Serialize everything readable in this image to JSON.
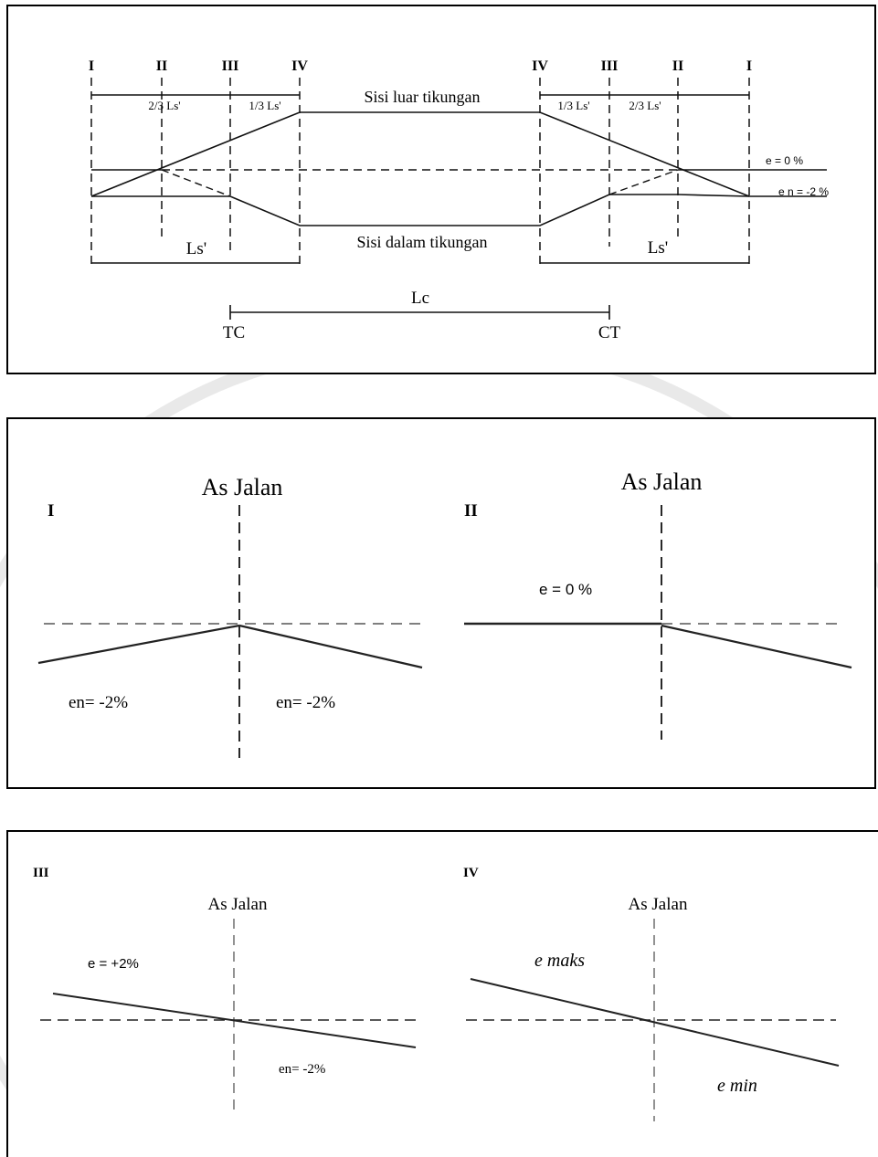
{
  "transition_diagram": {
    "stations_left": [
      "I",
      "II",
      "III",
      "IV"
    ],
    "stations_right": [
      "IV",
      "III",
      "II",
      "I"
    ],
    "segments_left": [
      "2/3 Ls'",
      "1/3 Ls'"
    ],
    "segments_right": [
      "1/3 Ls'",
      "2/3 Ls'"
    ],
    "outer_edge_label": "Sisi luar tikungan",
    "inner_edge_label": "Sisi dalam tikungan",
    "e_zero_label": "e = 0 %",
    "en_label": "e n = -2 %",
    "ls_left_label": "Ls'",
    "ls_right_label": "Ls'",
    "lc_label": "Lc",
    "tc_label": "TC",
    "ct_label": "CT"
  },
  "cross_sections": {
    "I": {
      "roman": "I",
      "axis_label": "As Jalan",
      "left_slope": "en= -2%",
      "right_slope": "en= -2%"
    },
    "II": {
      "roman": "II",
      "axis_label": "As Jalan",
      "left_slope": "e = 0 %"
    },
    "III": {
      "roman": "III",
      "axis_label": "As Jalan",
      "left_slope": "e = +2%",
      "right_slope": "en= -2%"
    },
    "IV": {
      "roman": "IV",
      "axis_label": "As Jalan",
      "top_label": "e maks",
      "bottom_label": "e min"
    }
  },
  "colors": {
    "ink": "#111111",
    "dash": "#333333",
    "watermark": "#e8e8e8"
  }
}
